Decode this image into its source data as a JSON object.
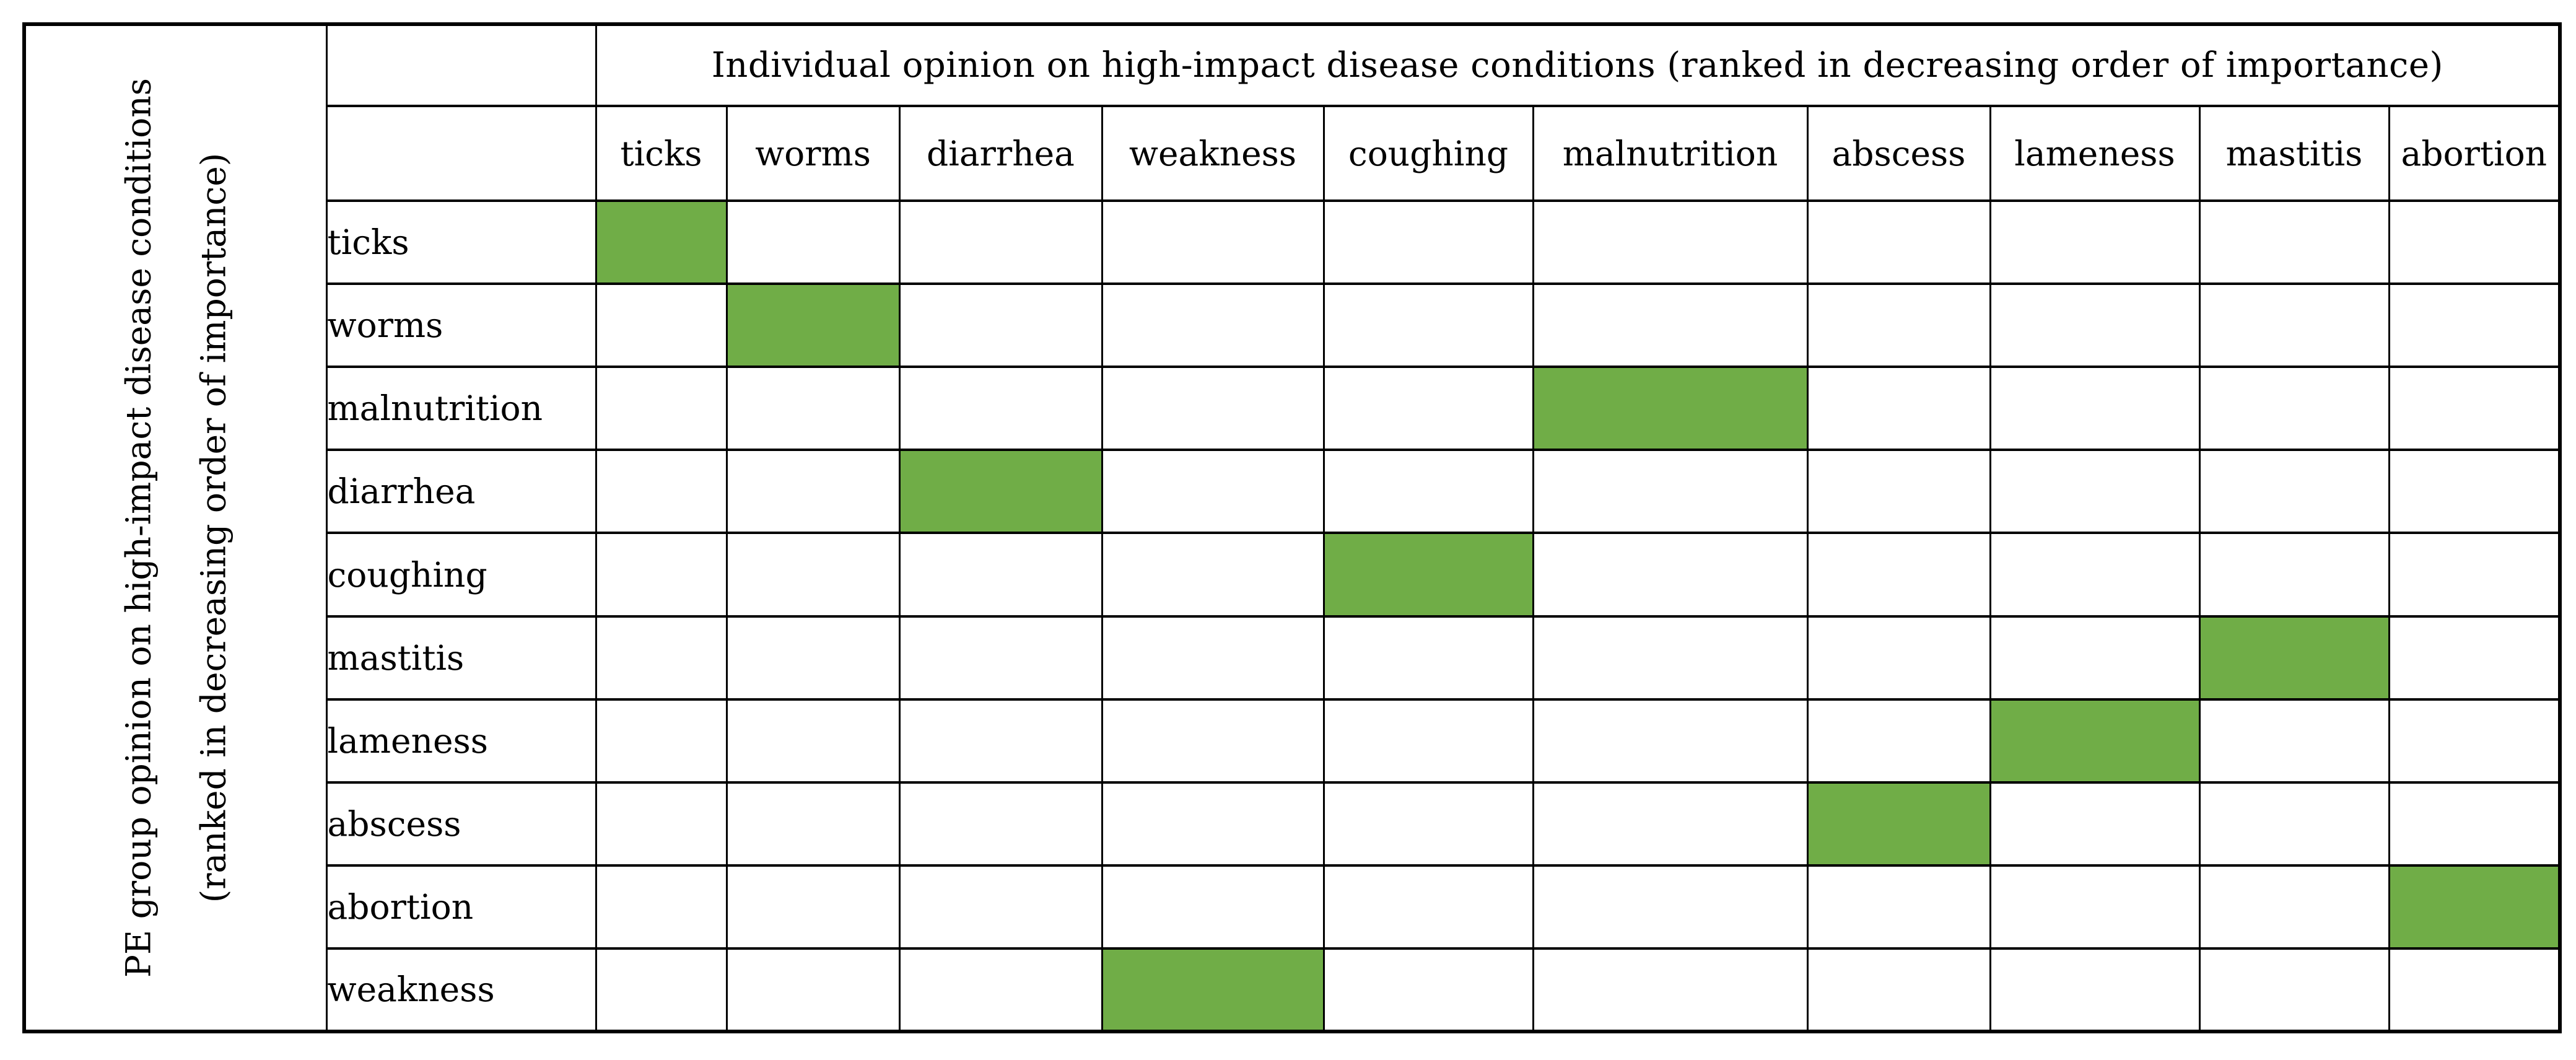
{
  "figure": {
    "column_group_header": "Individual opinion on high-impact disease conditions (ranked in decreasing order of importance)",
    "row_group_header_lines": [
      "PE group opinion on high-impact disease conditions",
      "(ranked in decreasing order of importance)"
    ],
    "columns": [
      "ticks",
      "worms",
      "diarrhea",
      "weakness",
      "coughing",
      "malnutrition",
      "abscess",
      "lameness",
      "mastitis",
      "abortion"
    ],
    "rows": [
      "ticks",
      "worms",
      "malnutrition",
      "diarrhea",
      "coughing",
      "mastitis",
      "lameness",
      "abscess",
      "abortion",
      "weakness"
    ],
    "highlight_color": "#70AD47",
    "border_color": "#000000",
    "highlighted_cells": [
      {
        "row": "ticks",
        "column": "ticks"
      },
      {
        "row": "worms",
        "column": "worms"
      },
      {
        "row": "malnutrition",
        "column": "malnutrition"
      },
      {
        "row": "diarrhea",
        "column": "diarrhea"
      },
      {
        "row": "coughing",
        "column": "coughing"
      },
      {
        "row": "mastitis",
        "column": "mastitis"
      },
      {
        "row": "lameness",
        "column": "lameness"
      },
      {
        "row": "abscess",
        "column": "abscess"
      },
      {
        "row": "abortion",
        "column": "abortion"
      },
      {
        "row": "weakness",
        "column": "weakness"
      }
    ]
  },
  "chart_data": {
    "type": "heatmap",
    "title": "",
    "xlabel": "Individual opinion on high-impact disease conditions (ranked in decreasing order of importance)",
    "ylabel": "PE group opinion on high-impact disease conditions (ranked in decreasing order of importance)",
    "x_categories": [
      "ticks",
      "worms",
      "diarrhea",
      "weakness",
      "coughing",
      "malnutrition",
      "abscess",
      "lameness",
      "mastitis",
      "abortion"
    ],
    "y_categories": [
      "ticks",
      "worms",
      "malnutrition",
      "diarrhea",
      "coughing",
      "mastitis",
      "lameness",
      "abscess",
      "abortion",
      "weakness"
    ],
    "matrix": [
      [
        1,
        0,
        0,
        0,
        0,
        0,
        0,
        0,
        0,
        0
      ],
      [
        0,
        1,
        0,
        0,
        0,
        0,
        0,
        0,
        0,
        0
      ],
      [
        0,
        0,
        0,
        0,
        0,
        1,
        0,
        0,
        0,
        0
      ],
      [
        0,
        0,
        1,
        0,
        0,
        0,
        0,
        0,
        0,
        0
      ],
      [
        0,
        0,
        0,
        0,
        1,
        0,
        0,
        0,
        0,
        0
      ],
      [
        0,
        0,
        0,
        0,
        0,
        0,
        0,
        0,
        1,
        0
      ],
      [
        0,
        0,
        0,
        0,
        0,
        0,
        0,
        1,
        0,
        0
      ],
      [
        0,
        0,
        0,
        0,
        0,
        0,
        1,
        0,
        0,
        0
      ],
      [
        0,
        0,
        0,
        0,
        0,
        0,
        0,
        0,
        0,
        1
      ],
      [
        0,
        0,
        0,
        1,
        0,
        0,
        0,
        0,
        0,
        0
      ]
    ],
    "cell_value_meaning": "1 = cell shaded green (individual opinion matches PE group opinion rank), 0 = blank cell",
    "grid": true,
    "legend_position": "none"
  }
}
